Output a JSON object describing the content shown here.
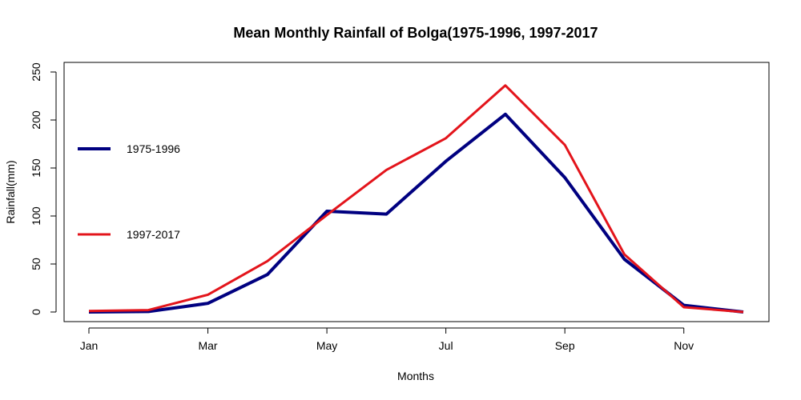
{
  "chart_data": {
    "type": "line",
    "title": "Mean Monthly Rainfall of Bolga(1975-1996, 1997-2017",
    "xlabel": "Months",
    "ylabel": "Rainfall(mm)",
    "ylim": [
      0,
      250
    ],
    "yticks": [
      0,
      50,
      100,
      150,
      200,
      250
    ],
    "categories": [
      "Jan",
      "Feb",
      "Mar",
      "Apr",
      "May",
      "Jun",
      "Jul",
      "Aug",
      "Sep",
      "Oct",
      "Nov",
      "Dec"
    ],
    "xtick_labels": [
      {
        "index": 0,
        "label": "Jan"
      },
      {
        "index": 2,
        "label": "Mar"
      },
      {
        "index": 4,
        "label": "May"
      },
      {
        "index": 6,
        "label": "Jul"
      },
      {
        "index": 8,
        "label": "Sep"
      },
      {
        "index": 10,
        "label": "Nov"
      }
    ],
    "grid": false,
    "legend_position": "left",
    "series": [
      {
        "name": "1975-1996",
        "color": "#000080",
        "values": [
          0,
          0.5,
          9,
          39,
          105,
          102,
          157,
          206,
          140,
          55,
          7,
          0
        ]
      },
      {
        "name": "1997-2017",
        "color": "#e3141b",
        "values": [
          1,
          2,
          18,
          53,
          101,
          148,
          181,
          236,
          174,
          60,
          5,
          0
        ]
      }
    ]
  }
}
